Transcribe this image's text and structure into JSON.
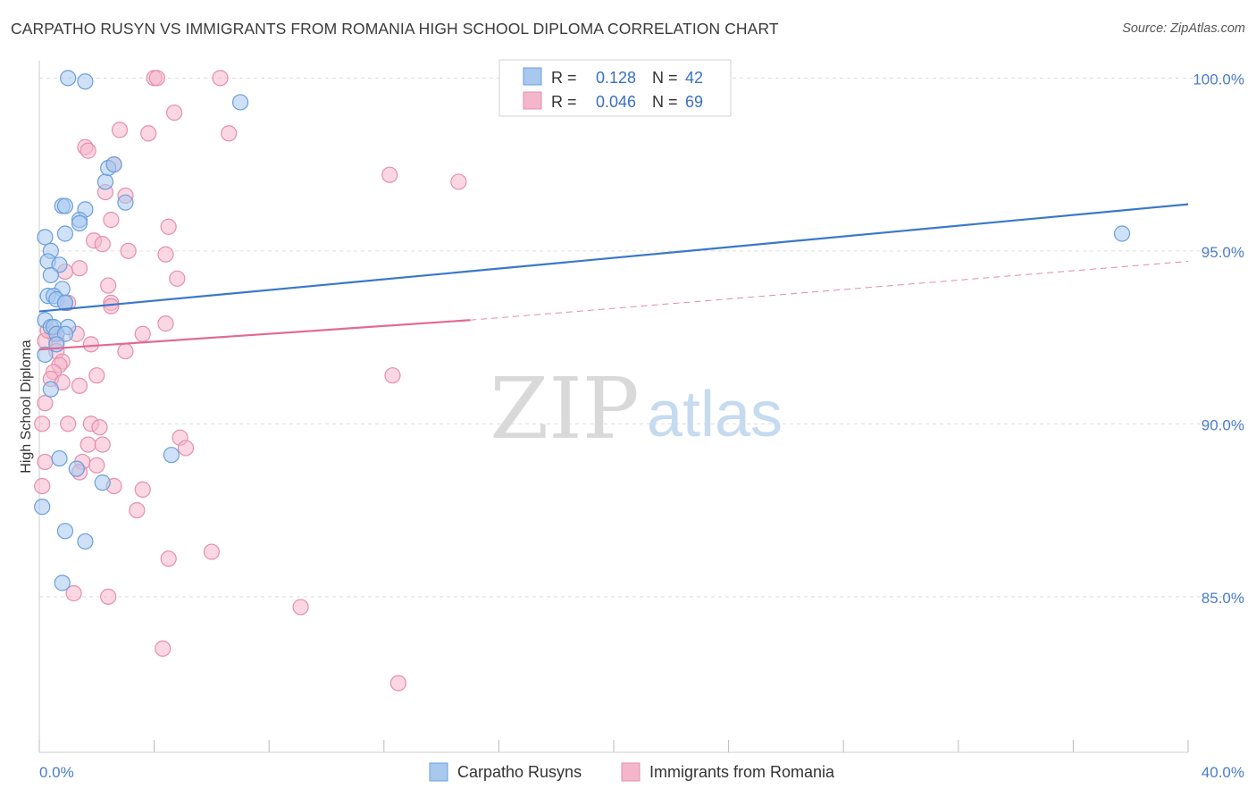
{
  "header": {
    "title": "CARPATHO RUSYN VS IMMIGRANTS FROM ROMANIA HIGH SCHOOL DIPLOMA CORRELATION CHART",
    "source": "Source: ZipAtlas.com"
  },
  "watermark": {
    "zip": "ZIP",
    "atlas": "atlas"
  },
  "colors": {
    "blue": "#3a78c9",
    "blue_fill": "#a8c8ee",
    "pink": "#e06a95",
    "pink_fill": "#f5b6cb",
    "tick_label": "#4a7cc9",
    "grid": "#dddddd"
  },
  "legend": {
    "rows": [
      {
        "r_label": "R =",
        "r_value": "0.128",
        "n_label": "N =",
        "n_value": "42"
      },
      {
        "r_label": "R =",
        "r_value": "0.046",
        "n_label": "N =",
        "n_value": "69"
      }
    ]
  },
  "chart_data": {
    "type": "scatter",
    "title": "CARPATHO RUSYN VS IMMIGRANTS FROM ROMANIA HIGH SCHOOL DIPLOMA CORRELATION CHART",
    "xlabel": "",
    "ylabel": "High School Diploma",
    "xlim": [
      0,
      40
    ],
    "ylim": [
      80.5,
      100.5
    ],
    "x_tick_labels": [
      "0.0%",
      "40.0%"
    ],
    "y_ticks": [
      85,
      90,
      95,
      100
    ],
    "y_tick_labels": [
      "85.0%",
      "90.0%",
      "95.0%",
      "100.0%"
    ],
    "grid": true,
    "legend_position": "top-center",
    "series": [
      {
        "name": "Carpatho Rusyns",
        "color": "#3a78c9",
        "trend": {
          "x": [
            0,
            40
          ],
          "y": [
            93.25,
            96.35
          ],
          "dashed_from": null
        },
        "points": [
          [
            1.0,
            100.0
          ],
          [
            1.6,
            99.9
          ],
          [
            7.0,
            99.3
          ],
          [
            2.3,
            97.0
          ],
          [
            2.4,
            97.4
          ],
          [
            3.0,
            96.4
          ],
          [
            0.8,
            96.3
          ],
          [
            0.9,
            96.3
          ],
          [
            1.6,
            96.2
          ],
          [
            1.4,
            95.9
          ],
          [
            1.4,
            95.8
          ],
          [
            0.9,
            95.5
          ],
          [
            0.2,
            95.4
          ],
          [
            0.4,
            95.0
          ],
          [
            0.3,
            94.7
          ],
          [
            0.7,
            94.6
          ],
          [
            0.4,
            94.3
          ],
          [
            0.8,
            93.9
          ],
          [
            0.3,
            93.7
          ],
          [
            0.5,
            93.7
          ],
          [
            0.6,
            93.6
          ],
          [
            0.9,
            93.5
          ],
          [
            0.2,
            93.0
          ],
          [
            0.4,
            92.8
          ],
          [
            0.5,
            92.8
          ],
          [
            1.0,
            92.8
          ],
          [
            0.6,
            92.6
          ],
          [
            0.9,
            92.6
          ],
          [
            0.6,
            92.3
          ],
          [
            0.2,
            92.0
          ],
          [
            0.4,
            91.0
          ],
          [
            0.7,
            89.0
          ],
          [
            4.6,
            89.1
          ],
          [
            1.3,
            88.7
          ],
          [
            2.2,
            88.3
          ],
          [
            0.1,
            87.6
          ],
          [
            0.9,
            86.9
          ],
          [
            1.6,
            86.6
          ],
          [
            0.8,
            85.4
          ],
          [
            37.7,
            95.5
          ],
          [
            0.9,
            93.5
          ],
          [
            2.6,
            97.5
          ]
        ]
      },
      {
        "name": "Immigrants from Romania",
        "color": "#e06a95",
        "trend": {
          "x": [
            0,
            15,
            40
          ],
          "y": [
            92.15,
            93.0,
            94.7
          ],
          "dashed_from": 15
        },
        "points": [
          [
            4.0,
            100.0
          ],
          [
            4.1,
            100.0
          ],
          [
            6.3,
            100.0
          ],
          [
            4.7,
            99.0
          ],
          [
            2.8,
            98.5
          ],
          [
            3.8,
            98.4
          ],
          [
            6.6,
            98.4
          ],
          [
            1.6,
            98.0
          ],
          [
            1.7,
            97.9
          ],
          [
            2.6,
            97.5
          ],
          [
            12.2,
            97.2
          ],
          [
            14.6,
            97.0
          ],
          [
            2.3,
            96.7
          ],
          [
            3.0,
            96.6
          ],
          [
            4.5,
            95.7
          ],
          [
            1.9,
            95.3
          ],
          [
            2.2,
            95.2
          ],
          [
            3.1,
            95.0
          ],
          [
            4.4,
            94.9
          ],
          [
            1.4,
            94.5
          ],
          [
            0.9,
            94.4
          ],
          [
            4.8,
            94.2
          ],
          [
            2.4,
            94.0
          ],
          [
            2.5,
            93.5
          ],
          [
            2.5,
            93.4
          ],
          [
            1.0,
            93.5
          ],
          [
            4.4,
            92.9
          ],
          [
            3.6,
            92.6
          ],
          [
            1.3,
            92.6
          ],
          [
            0.5,
            92.6
          ],
          [
            0.6,
            92.4
          ],
          [
            0.2,
            92.4
          ],
          [
            1.8,
            92.3
          ],
          [
            0.6,
            92.1
          ],
          [
            3.0,
            92.1
          ],
          [
            0.8,
            91.8
          ],
          [
            0.7,
            91.7
          ],
          [
            0.5,
            91.5
          ],
          [
            2.0,
            91.4
          ],
          [
            12.3,
            91.4
          ],
          [
            0.4,
            91.3
          ],
          [
            0.8,
            91.2
          ],
          [
            1.4,
            91.1
          ],
          [
            0.2,
            90.6
          ],
          [
            0.1,
            90.0
          ],
          [
            1.0,
            90.0
          ],
          [
            1.8,
            90.0
          ],
          [
            2.1,
            89.9
          ],
          [
            4.9,
            89.6
          ],
          [
            5.1,
            89.3
          ],
          [
            1.7,
            89.4
          ],
          [
            2.2,
            89.4
          ],
          [
            1.5,
            88.9
          ],
          [
            2.0,
            88.8
          ],
          [
            0.2,
            88.9
          ],
          [
            1.4,
            88.6
          ],
          [
            0.1,
            88.2
          ],
          [
            2.6,
            88.2
          ],
          [
            3.6,
            88.1
          ],
          [
            3.4,
            87.5
          ],
          [
            6.0,
            86.3
          ],
          [
            4.5,
            86.1
          ],
          [
            1.2,
            85.1
          ],
          [
            2.4,
            85.0
          ],
          [
            9.1,
            84.7
          ],
          [
            4.3,
            83.5
          ],
          [
            12.5,
            82.5
          ],
          [
            0.3,
            92.7
          ],
          [
            2.5,
            95.9
          ]
        ]
      }
    ]
  },
  "bottom_legend": {
    "items": [
      {
        "label": "Carpatho Rusyns"
      },
      {
        "label": "Immigrants from Romania"
      }
    ]
  }
}
